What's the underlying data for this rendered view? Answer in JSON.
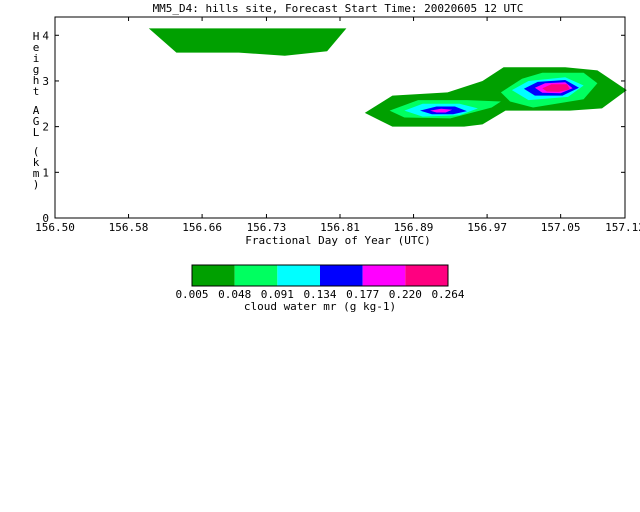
{
  "chart_data": {
    "type": "contour",
    "title": "MM5_D4: hills site,  Forecast Start Time: 20020605 12 UTC",
    "xlabel": "Fractional Day of Year (UTC)",
    "ylabel": "Height AGL (km)",
    "xlim": [
      156.5,
      157.12
    ],
    "ylim": [
      0,
      4.4
    ],
    "x_ticks": [
      "156.50",
      "156.58",
      "156.66",
      "156.73",
      "156.81",
      "156.89",
      "156.97",
      "157.05",
      "157.12"
    ],
    "x_tick_values": [
      156.5,
      156.58,
      156.66,
      156.73,
      156.81,
      156.89,
      156.97,
      157.05,
      157.12
    ],
    "y_ticks": [
      "0",
      "1",
      "2",
      "3",
      "4"
    ],
    "y_tick_values": [
      0,
      1,
      2,
      3,
      4
    ],
    "colorbar": {
      "label": "cloud water mr (g kg-1)",
      "levels": [
        "0.005",
        "0.048",
        "0.091",
        "0.134",
        "0.177",
        "0.220",
        "0.264"
      ],
      "colors": [
        "#00a000",
        "#00ff60",
        "#00ffff",
        "#0000ff",
        "#ff00ff",
        "#ff0080"
      ]
    },
    "regions": [
      {
        "level": 0,
        "points": [
          [
            156.602,
            4.15
          ],
          [
            156.817,
            4.15
          ],
          [
            156.796,
            3.65
          ],
          [
            156.75,
            3.55
          ],
          [
            156.7,
            3.62
          ],
          [
            156.632,
            3.62
          ]
        ]
      },
      {
        "level": 0,
        "points": [
          [
            156.837,
            2.3
          ],
          [
            156.867,
            2.68
          ],
          [
            156.927,
            2.75
          ],
          [
            156.965,
            3.0
          ],
          [
            156.988,
            3.3
          ],
          [
            157.055,
            3.3
          ],
          [
            157.09,
            3.23
          ],
          [
            157.122,
            2.8
          ],
          [
            157.095,
            2.4
          ],
          [
            157.06,
            2.35
          ],
          [
            156.99,
            2.35
          ],
          [
            156.965,
            2.05
          ],
          [
            156.945,
            2.0
          ],
          [
            156.867,
            2.0
          ]
        ]
      },
      {
        "level": 1,
        "points": [
          [
            156.864,
            2.35
          ],
          [
            156.895,
            2.58
          ],
          [
            156.948,
            2.58
          ],
          [
            156.985,
            2.55
          ],
          [
            156.975,
            2.42
          ],
          [
            156.93,
            2.18
          ],
          [
            156.88,
            2.2
          ]
        ]
      },
      {
        "level": 1,
        "points": [
          [
            156.985,
            2.75
          ],
          [
            157.008,
            3.05
          ],
          [
            157.03,
            3.18
          ],
          [
            157.075,
            3.18
          ],
          [
            157.09,
            2.95
          ],
          [
            157.075,
            2.6
          ],
          [
            157.02,
            2.42
          ],
          [
            156.995,
            2.55
          ]
        ]
      },
      {
        "level": 2,
        "points": [
          [
            156.88,
            2.35
          ],
          [
            156.9,
            2.5
          ],
          [
            156.94,
            2.5
          ],
          [
            156.96,
            2.4
          ],
          [
            156.94,
            2.25
          ],
          [
            156.9,
            2.22
          ]
        ]
      },
      {
        "level": 2,
        "points": [
          [
            156.997,
            2.8
          ],
          [
            157.015,
            3.0
          ],
          [
            157.055,
            3.08
          ],
          [
            157.075,
            2.9
          ],
          [
            157.058,
            2.65
          ],
          [
            157.015,
            2.58
          ]
        ]
      },
      {
        "level": 3,
        "points": [
          [
            156.897,
            2.35
          ],
          [
            156.915,
            2.44
          ],
          [
            156.935,
            2.44
          ],
          [
            156.948,
            2.34
          ],
          [
            156.933,
            2.27
          ],
          [
            156.91,
            2.27
          ]
        ]
      },
      {
        "level": 3,
        "points": [
          [
            157.01,
            2.83
          ],
          [
            157.025,
            2.98
          ],
          [
            157.055,
            3.02
          ],
          [
            157.07,
            2.85
          ],
          [
            157.052,
            2.68
          ],
          [
            157.022,
            2.68
          ]
        ]
      },
      {
        "level": 4,
        "points": [
          [
            156.908,
            2.35
          ],
          [
            156.92,
            2.39
          ],
          [
            156.932,
            2.37
          ],
          [
            156.925,
            2.31
          ],
          [
            156.915,
            2.31
          ]
        ]
      },
      {
        "level": 4,
        "points": [
          [
            157.022,
            2.85
          ],
          [
            157.033,
            2.95
          ],
          [
            157.055,
            2.97
          ],
          [
            157.063,
            2.84
          ],
          [
            157.05,
            2.73
          ],
          [
            157.03,
            2.74
          ]
        ]
      },
      {
        "level": 5,
        "points": [
          [
            157.03,
            2.84
          ],
          [
            157.04,
            2.93
          ],
          [
            157.057,
            2.93
          ],
          [
            157.06,
            2.82
          ],
          [
            157.048,
            2.76
          ],
          [
            157.035,
            2.77
          ]
        ]
      }
    ]
  }
}
